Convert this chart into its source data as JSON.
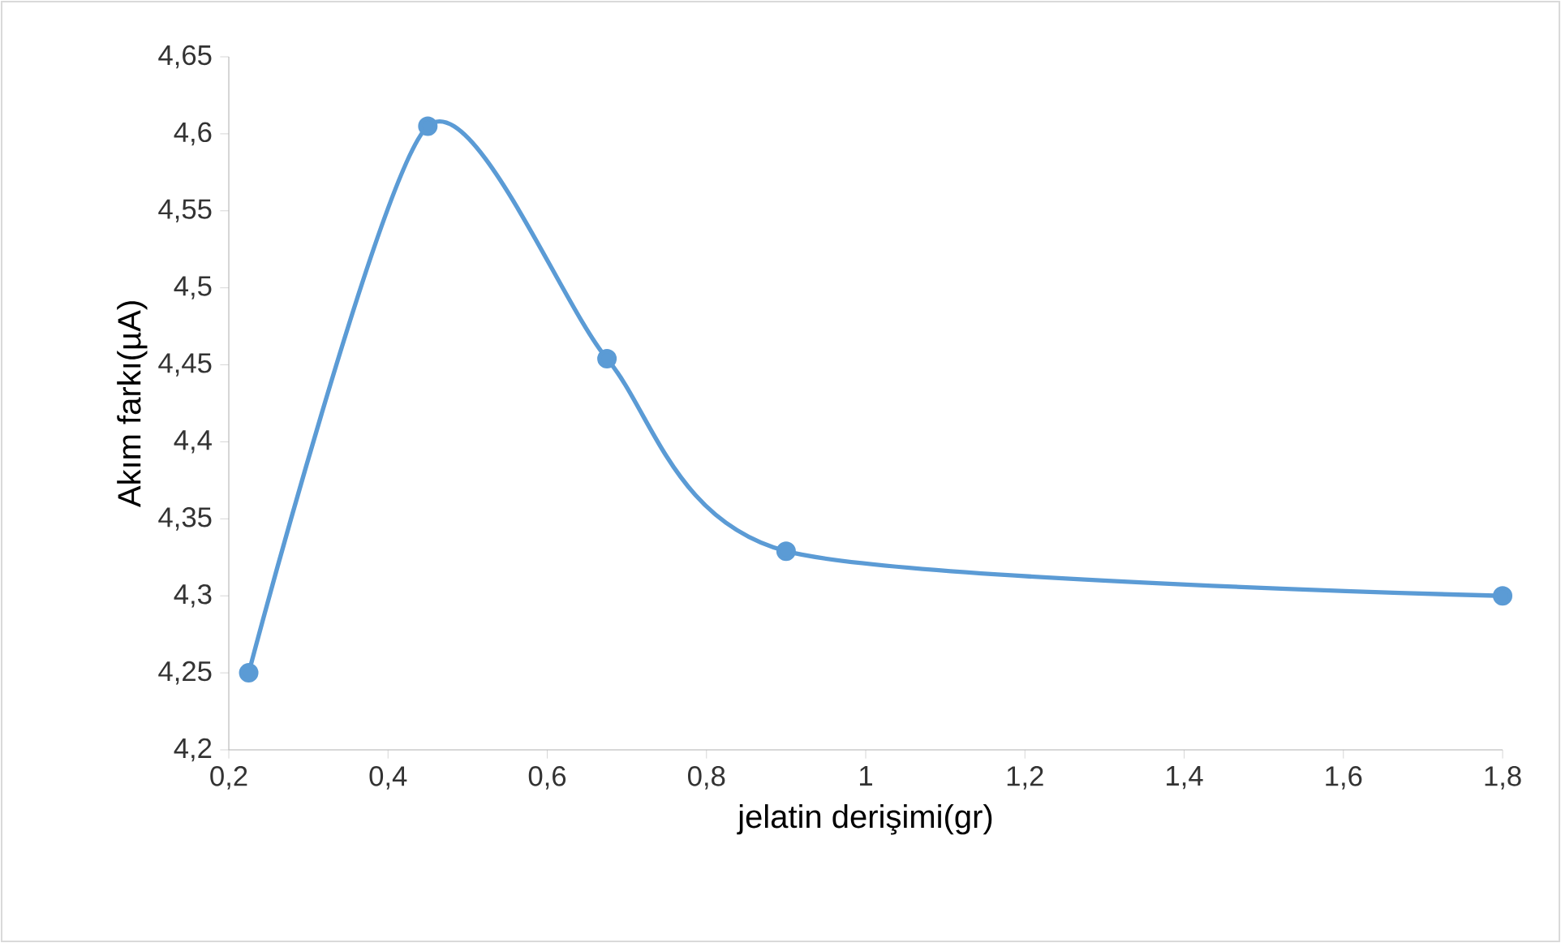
{
  "chart_data": {
    "type": "line",
    "xlabel": "jelatin derişimi(gr)",
    "ylabel": "Akım farkı(µA)",
    "x": [
      0.225,
      0.45,
      0.675,
      0.9,
      1.8
    ],
    "values": [
      4.25,
      4.605,
      4.454,
      4.329,
      4.3
    ],
    "color": "#5b9bd5",
    "marker": "circle",
    "line_style": "solid",
    "xlim": [
      0.2,
      1.8
    ],
    "ylim": [
      4.2,
      4.65
    ],
    "xticks": [
      {
        "value": 0.2,
        "label": "0,2"
      },
      {
        "value": 0.4,
        "label": "0,4"
      },
      {
        "value": 0.6,
        "label": "0,6"
      },
      {
        "value": 0.8,
        "label": "0,8"
      },
      1,
      {
        "value": 1.2,
        "label": "1,2"
      },
      {
        "value": 1.4,
        "label": "1,4"
      },
      {
        "value": 1.6,
        "label": "1,6"
      },
      {
        "value": 1.8,
        "label": "1,8"
      }
    ],
    "yticks": [
      {
        "value": 4.2,
        "label": "4,2"
      },
      {
        "value": 4.25,
        "label": "4,25"
      },
      {
        "value": 4.3,
        "label": "4,3"
      },
      {
        "value": 4.35,
        "label": "4,35"
      },
      {
        "value": 4.4,
        "label": "4,4"
      },
      {
        "value": 4.45,
        "label": "4,45"
      },
      {
        "value": 4.5,
        "label": "4,5"
      },
      {
        "value": 4.55,
        "label": "4,55"
      },
      {
        "value": 4.6,
        "label": "4,6"
      },
      {
        "value": 4.65,
        "label": "4,65"
      }
    ]
  }
}
